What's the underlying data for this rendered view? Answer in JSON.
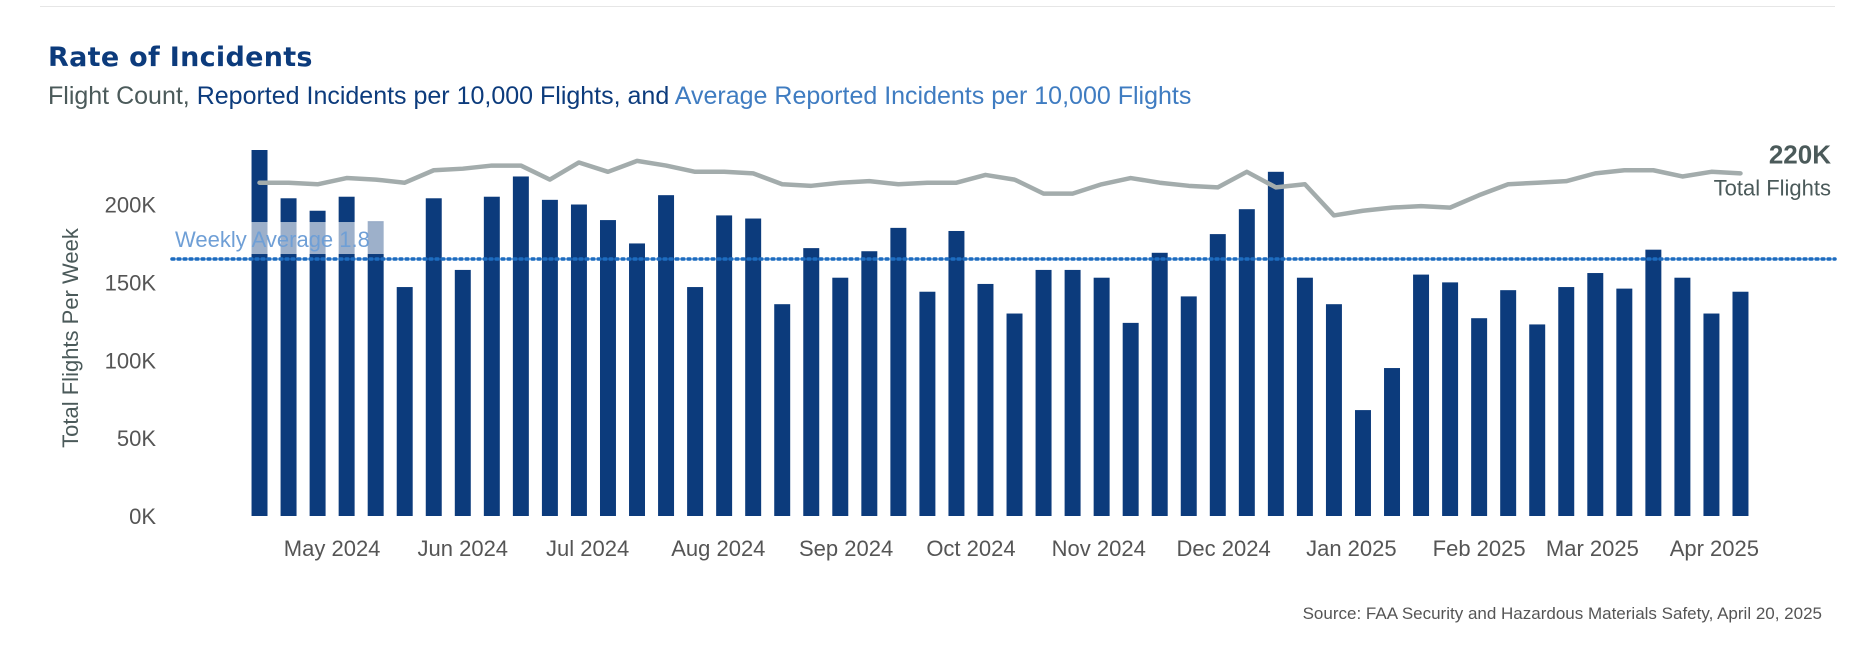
{
  "header": {
    "title": "Rate of Incidents",
    "subtitle_part1": "Flight Count",
    "subtitle_sep1": ", ",
    "subtitle_part2": "Reported Incidents per 10,000 Flights",
    "subtitle_sep2": ", and ",
    "subtitle_part3": "Average Reported Incidents per 10,000 Flights"
  },
  "source": "Source: FAA Security and Hazardous Materials Safety, April 20, 2025",
  "colors": {
    "bars": "#0c3b7c",
    "line": "#a3acac",
    "average": "#1d6cc0",
    "average_label": "#6f9fd6",
    "axis_text": "#555555"
  },
  "chart_data": {
    "type": "bar",
    "ylabel": "Total Flights Per Week",
    "ylim": [
      0,
      235000
    ],
    "y_ticks": [
      {
        "value": 0,
        "label": "0K"
      },
      {
        "value": 50000,
        "label": "50K"
      },
      {
        "value": 100000,
        "label": "100K"
      },
      {
        "value": 150000,
        "label": "150K"
      },
      {
        "value": 200000,
        "label": "200K"
      }
    ],
    "x_ticks": [
      {
        "index": 2.5,
        "label": "May 2024"
      },
      {
        "index": 7,
        "label": "Jun 2024"
      },
      {
        "index": 11.3,
        "label": "Jul 2024"
      },
      {
        "index": 15.8,
        "label": "Aug 2024"
      },
      {
        "index": 20.2,
        "label": "Sep 2024"
      },
      {
        "index": 24.5,
        "label": "Oct 2024"
      },
      {
        "index": 28.9,
        "label": "Nov 2024"
      },
      {
        "index": 33.2,
        "label": "Dec 2024"
      },
      {
        "index": 37.6,
        "label": "Jan 2025"
      },
      {
        "index": 42,
        "label": "Feb 2025"
      },
      {
        "index": 45.9,
        "label": "Mar 2025"
      },
      {
        "index": 50.1,
        "label": "Apr 2025"
      }
    ],
    "bar_series": {
      "values": [
        235000,
        204000,
        196000,
        205000,
        189000,
        147000,
        204000,
        158000,
        205000,
        218000,
        203000,
        200000,
        190000,
        175000,
        206000,
        147000,
        193000,
        191000,
        136000,
        172000,
        153000,
        170000,
        185000,
        144000,
        183000,
        149000,
        130000,
        158000,
        158000,
        153000,
        124000,
        169000,
        141000,
        181000,
        197000,
        221000,
        153000,
        136000,
        68000,
        95000,
        155000,
        150000,
        127000,
        145000,
        123000,
        147000,
        156000,
        146000,
        171000,
        153000,
        130000,
        144000
      ]
    },
    "line_series": {
      "values": [
        214000,
        214000,
        213000,
        217000,
        216000,
        214000,
        222000,
        223000,
        225000,
        225000,
        216000,
        227000,
        221000,
        228000,
        225000,
        221000,
        221000,
        220000,
        213000,
        212000,
        214000,
        215000,
        213000,
        214000,
        214000,
        219000,
        216000,
        207000,
        207000,
        213000,
        217000,
        214000,
        212000,
        211000,
        221000,
        211000,
        213000,
        193000,
        196000,
        198000,
        199000,
        198000,
        206000,
        213000,
        214000,
        215000,
        220000,
        222000,
        222000,
        218000,
        221000,
        220000
      ],
      "end_value_label": "220K",
      "end_label": "Total Flights"
    },
    "average_line": {
      "value": 165000,
      "label": "Weekly Average 1.8"
    }
  }
}
